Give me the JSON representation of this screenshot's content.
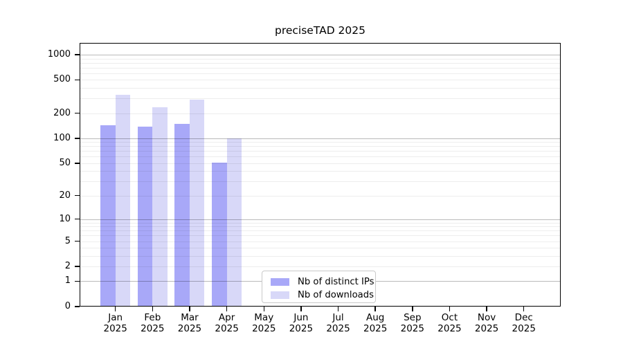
{
  "title": "preciseTAD 2025",
  "chart_data": {
    "type": "bar",
    "title": "preciseTAD 2025",
    "categories": [
      "Jan",
      "Feb",
      "Mar",
      "Apr",
      "May",
      "Jun",
      "Jul",
      "Aug",
      "Sep",
      "Oct",
      "Nov",
      "Dec"
    ],
    "category_year": "2025",
    "series": [
      {
        "name": "Nb of distinct IPs",
        "color": "#a8a8f8",
        "values": [
          143,
          139,
          148,
          51,
          null,
          null,
          null,
          null,
          null,
          null,
          null,
          null
        ]
      },
      {
        "name": "Nb of downloads",
        "color": "#d8d8f8",
        "values": [
          335,
          237,
          290,
          100,
          null,
          null,
          null,
          null,
          null,
          null,
          null,
          null
        ]
      }
    ],
    "y_axis": {
      "scale": "log10(value+1)",
      "ticks": [
        0,
        1,
        2,
        5,
        10,
        20,
        50,
        100,
        200,
        500,
        1000
      ],
      "range": [
        0,
        1000
      ]
    },
    "gridlines": {
      "major": [
        1,
        10,
        100,
        1000
      ],
      "minor": [
        2,
        3,
        4,
        5,
        6,
        7,
        8,
        9,
        20,
        30,
        40,
        50,
        60,
        70,
        80,
        90,
        200,
        300,
        400,
        500,
        600,
        700,
        800,
        900
      ]
    },
    "grid": "on",
    "legend_position": "inside-bottom-center"
  },
  "legend": {
    "items": [
      {
        "label": "Nb of distinct IPs",
        "color": "#a8a8f8"
      },
      {
        "label": "Nb of downloads",
        "color": "#d8d8f8"
      }
    ]
  }
}
